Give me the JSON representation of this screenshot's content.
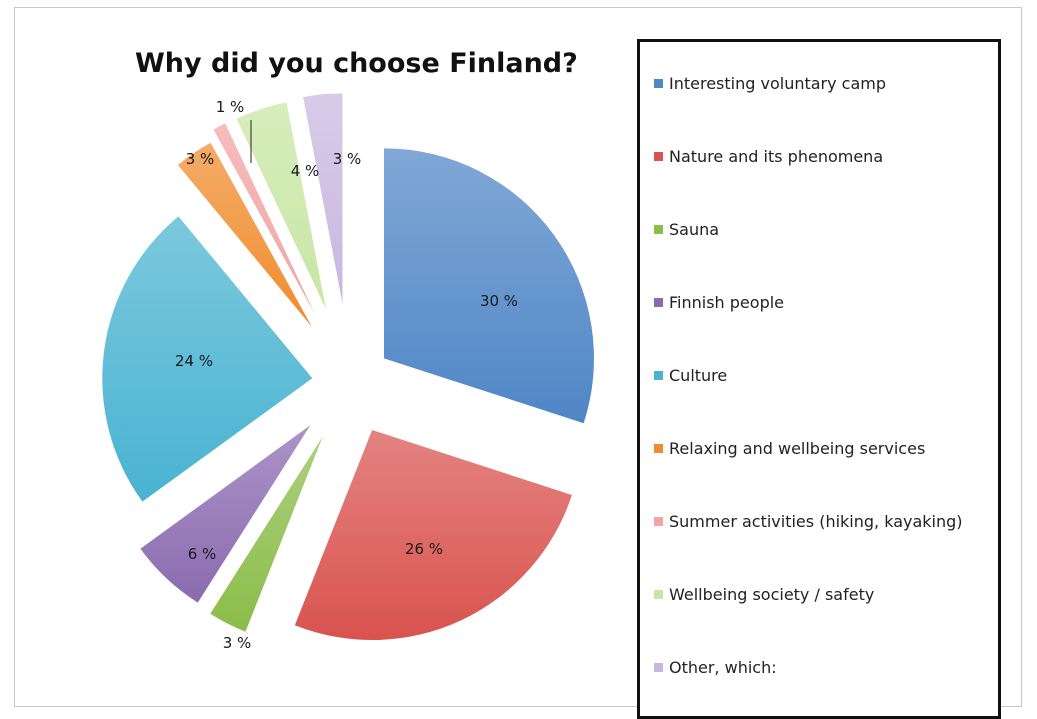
{
  "chart_data": {
    "type": "pie",
    "title": "Why did you choose Finland?",
    "slices": [
      {
        "name": "Interesting voluntary camp",
        "value": 30,
        "label": "30 %",
        "color": "#4f86c6"
      },
      {
        "name": "Nature and its phenomena",
        "value": 26,
        "label": "26 %",
        "color": "#d9534f"
      },
      {
        "name": "Sauna",
        "value": 3,
        "label": "3 %",
        "color": "#8bbd4a"
      },
      {
        "name": "Finnish people",
        "value": 6,
        "label": "6 %",
        "color": "#8a6bb0"
      },
      {
        "name": "Culture",
        "value": 24,
        "label": "24 %",
        "color": "#49b3d1"
      },
      {
        "name": "Relaxing and wellbeing services",
        "value": 3,
        "label": "3 %",
        "color": "#f08c2e"
      },
      {
        "name": "Summer activities (hiking, kayaking)",
        "value": 1,
        "label": "1 %",
        "color": "#f2a3a3"
      },
      {
        "name": "Wellbeing society / safety",
        "value": 4,
        "label": "4 %",
        "color": "#c8e6a3"
      },
      {
        "name": "Other, which:",
        "value": 3,
        "label": "3 %",
        "color": "#c9b7e0"
      }
    ],
    "legend_position": "right"
  }
}
